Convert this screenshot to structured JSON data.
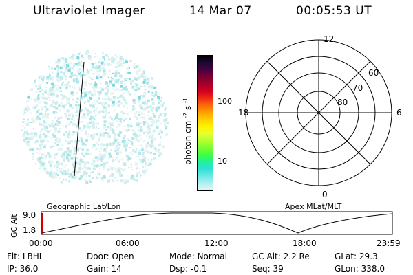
{
  "header": {
    "instrument": "Ultraviolet Imager",
    "date": "14 Mar 07",
    "time": "00:05:53 UT"
  },
  "colorbar": {
    "label": "photon cm",
    "label_sup1": "-2",
    "label_mid": "s",
    "label_sup2": "-1",
    "ticks": [
      "100",
      "10"
    ],
    "colors": [
      "#000000",
      "#1a0a30",
      "#4b0040",
      "#7a0030",
      "#a8002a",
      "#d2001e",
      "#ef2a12",
      "#fb6a08",
      "#ffa000",
      "#ffcf00",
      "#fff200",
      "#e6ff30",
      "#b4ff30",
      "#7aff30",
      "#3cff40",
      "#20f0a0",
      "#30e0d8",
      "#70e8e8",
      "#b0f0f0",
      "#e0f6f6"
    ]
  },
  "polar_plot": {
    "mlt_labels": {
      "top": "12",
      "bottom": "0",
      "left": "18",
      "right": "6"
    },
    "lat_labels": [
      "60",
      "70",
      "80"
    ]
  },
  "timeline": {
    "ylabel": "GC Alt",
    "yticks": [
      "9.0",
      "1.8"
    ],
    "left_title": "Geographic Lat/Lon",
    "right_title": "Apex MLat/MLT",
    "xticks": [
      "00:00",
      "06:00",
      "12:00",
      "18:00",
      "23:59"
    ]
  },
  "status": {
    "flt": {
      "label": "Flt:",
      "value": "LBHL"
    },
    "ip": {
      "label": "IP:",
      "value": "36.0"
    },
    "door": {
      "label": "Door:",
      "value": "Open"
    },
    "gain": {
      "label": "Gain:",
      "value": "14"
    },
    "mode": {
      "label": "Mode:",
      "value": "Normal"
    },
    "dsp": {
      "label": "Dsp:",
      "value": "-0.1"
    },
    "gcalt": {
      "label": "GC Alt:",
      "value": "2.2 Re"
    },
    "seq": {
      "label": "Seq:",
      "value": "39"
    },
    "glat": {
      "label": "GLat:",
      "value": "29.3"
    },
    "glon": {
      "label": "GLon:",
      "value": "338.0"
    }
  }
}
